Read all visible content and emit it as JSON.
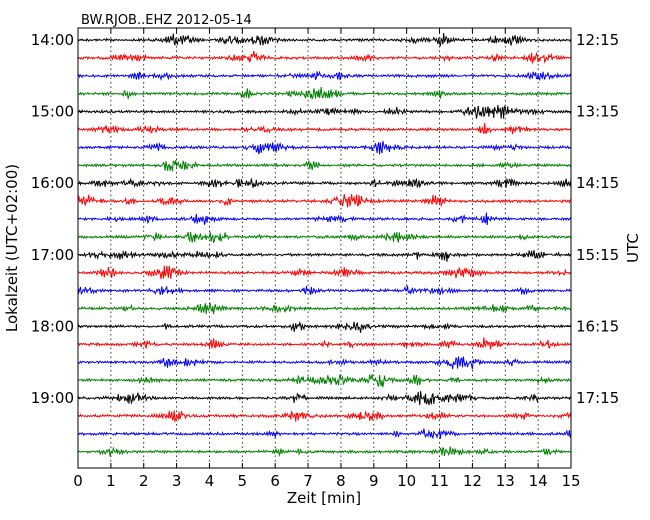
{
  "chart_data": {
    "type": "line",
    "title": "BW.RJOB..EHZ 2012-05-14",
    "xlabel": "Zeit  [min]",
    "ylabel_left": "Lokalzeit (UTC+02:00)",
    "ylabel_right": "UTC",
    "xlim": [
      0,
      15
    ],
    "x_ticks": [
      "0",
      "1",
      "2",
      "3",
      "4",
      "5",
      "6",
      "7",
      "8",
      "9",
      "10",
      "11",
      "12",
      "13",
      "14",
      "15"
    ],
    "left_tick_labels": [
      "14:00",
      "15:00",
      "16:00",
      "17:00",
      "18:00",
      "19:00"
    ],
    "right_tick_labels": [
      "12:15",
      "13:15",
      "14:15",
      "15:15",
      "16:15",
      "17:15"
    ],
    "grid": "vertical dotted lines every minute",
    "traces_per_hour": 4,
    "trace_count": 24,
    "trace_minutes": 15,
    "trace_colors": [
      "#000000",
      "#ff0000",
      "#0000ff",
      "#008000"
    ]
  }
}
